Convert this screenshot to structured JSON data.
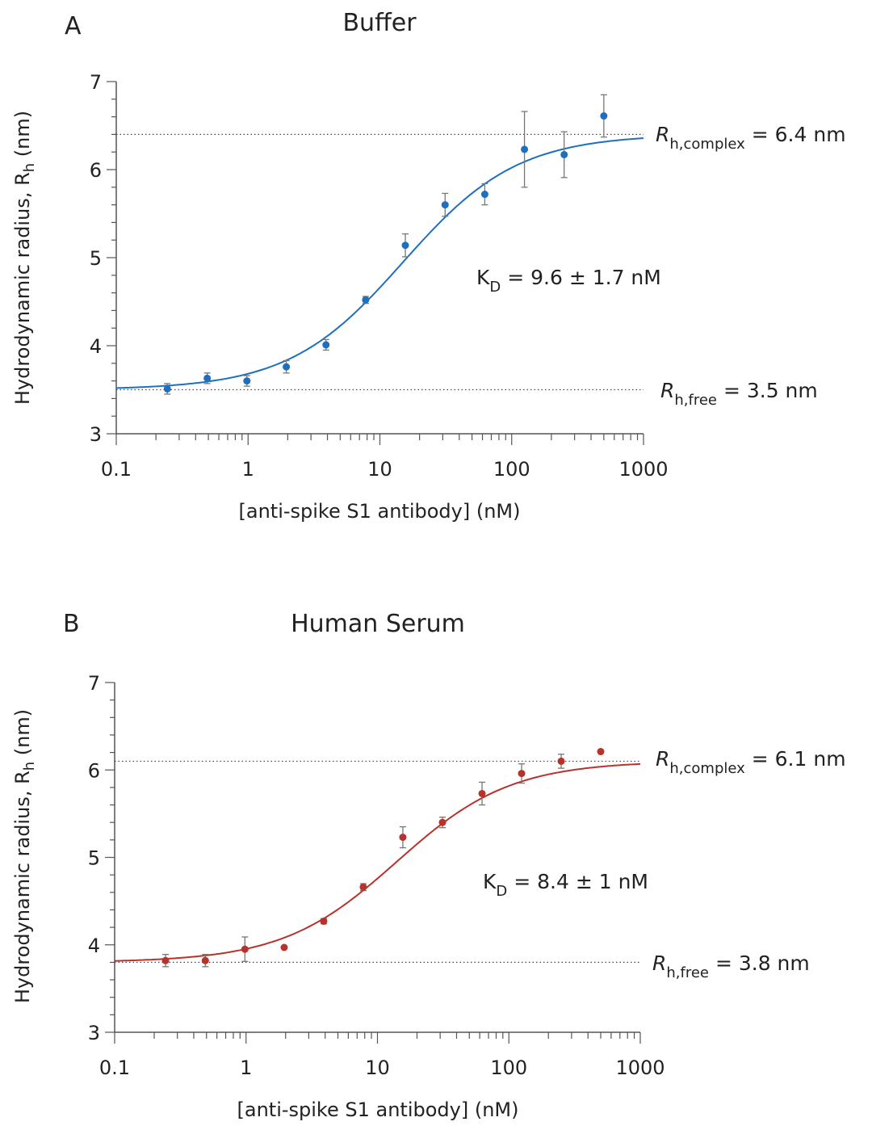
{
  "chart_data": [
    {
      "type": "scatter",
      "panel": "A",
      "title": "Buffer",
      "xlabel": "[anti-spike S1 antibody] (nM)",
      "ylabel": "Hydrodynamic radius, R",
      "ylabel_sub": "h",
      "ylabel_unit": " (nm)",
      "x_scale": "log",
      "xlim": [
        0.1,
        1000
      ],
      "ylim": [
        3,
        7
      ],
      "x_ticks": [
        "0.1",
        "1",
        "10",
        "100",
        "1000"
      ],
      "y_ticks": [
        "3",
        "4",
        "5",
        "6",
        "7"
      ],
      "grid": false,
      "color": "#1f6fbf",
      "x": [
        0.244,
        0.49,
        0.98,
        1.95,
        3.9,
        7.8,
        15.6,
        31.25,
        62.5,
        125,
        250,
        500
      ],
      "y": [
        3.51,
        3.63,
        3.6,
        3.76,
        4.01,
        4.52,
        5.14,
        5.6,
        5.72,
        6.23,
        6.17,
        6.61
      ],
      "yerr": [
        0.06,
        0.06,
        0.06,
        0.07,
        0.06,
        0.04,
        0.13,
        0.13,
        0.12,
        0.43,
        0.26,
        0.24
      ],
      "fit": {
        "bottom": 3.5,
        "top": 6.4
      },
      "annotations": {
        "complex": {
          "sym": "R",
          "sub": "h,complex",
          "text": " = 6.4 nm",
          "value": 6.4
        },
        "free": {
          "sym": "R",
          "sub": "h,free",
          "text": " = 3.5 nm",
          "value": 3.5
        },
        "kd": {
          "sym": "K",
          "sub": "D",
          "text": " = 9.6 ± 1.7 nM"
        }
      }
    },
    {
      "type": "scatter",
      "panel": "B",
      "title": "Human Serum",
      "xlabel": "[anti-spike S1 antibody] (nM)",
      "ylabel": "Hydrodynamic radius, R",
      "ylabel_sub": "h",
      "ylabel_unit": " (nm)",
      "x_scale": "log",
      "xlim": [
        0.1,
        1000
      ],
      "ylim": [
        3,
        7
      ],
      "x_ticks": [
        "0.1",
        "1",
        "10",
        "100",
        "1000"
      ],
      "y_ticks": [
        "3",
        "4",
        "5",
        "6",
        "7"
      ],
      "grid": false,
      "color": "#b8322c",
      "x": [
        0.244,
        0.49,
        0.98,
        1.95,
        3.9,
        7.8,
        15.6,
        31.25,
        62.5,
        125,
        250,
        500
      ],
      "y": [
        3.82,
        3.82,
        3.95,
        3.97,
        4.27,
        4.66,
        5.23,
        5.4,
        5.73,
        5.96,
        6.1,
        6.21
      ],
      "yerr": [
        0.07,
        0.07,
        0.14,
        0,
        0.03,
        0.04,
        0.12,
        0.06,
        0.13,
        0.11,
        0.08,
        0
      ],
      "fit": {
        "bottom": 3.8,
        "top": 6.1
      },
      "annotations": {
        "complex": {
          "sym": "R",
          "sub": "h,complex",
          "text": " = 6.1 nm",
          "value": 6.1
        },
        "free": {
          "sym": "R",
          "sub": "h,free",
          "text": " = 3.8 nm",
          "value": 3.8
        },
        "kd": {
          "sym": "K",
          "sub": "D",
          "text": " = 8.4 ± 1 nM"
        }
      }
    }
  ]
}
